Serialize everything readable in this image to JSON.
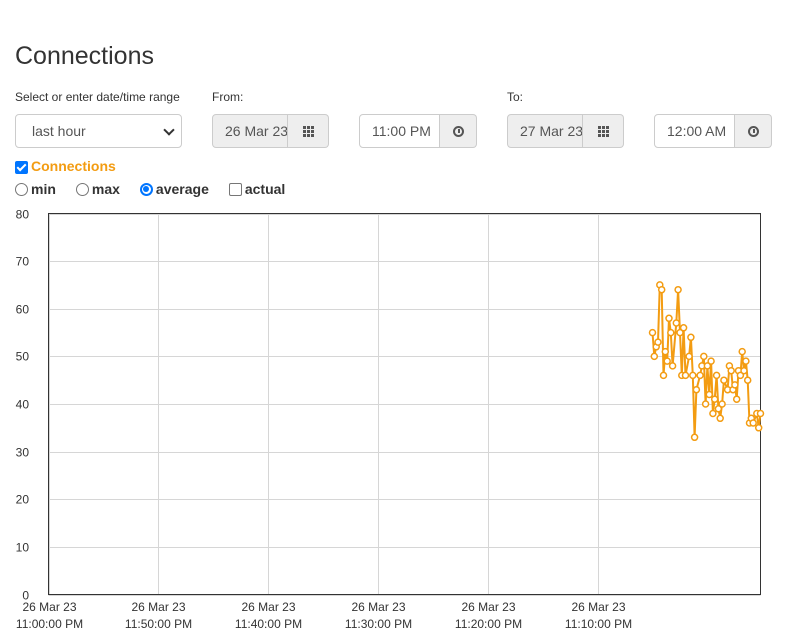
{
  "page": {
    "title": "Connections"
  },
  "range": {
    "label": "Select or enter date/time range",
    "selected": "last hour"
  },
  "from": {
    "label": "From:",
    "date": "26 Mar 23",
    "time": "11:00 PM",
    "date_icon": "calendar-grid-icon",
    "time_icon": "clock-icon"
  },
  "to": {
    "label": "To:",
    "date": "27 Mar 23",
    "time": "12:00 AM",
    "date_icon": "calendar-grid-icon",
    "time_icon": "clock-icon"
  },
  "metric": {
    "label": "Connections",
    "checked": true,
    "color": "#f39c12"
  },
  "modes": {
    "min": "min",
    "max": "max",
    "average": "average",
    "actual": "actual",
    "selected": "average"
  },
  "chart_data": {
    "type": "line",
    "title": "",
    "xlabel": "",
    "ylabel": "",
    "ylim": [
      0,
      80
    ],
    "yticks": [
      "0",
      "10",
      "20",
      "30",
      "40",
      "50",
      "60",
      "70",
      "80"
    ],
    "xticks": [
      {
        "date": "26 Mar 23",
        "time": "11:00:00 PM"
      },
      {
        "date": "26 Mar 23",
        "time": "11:10:00 PM"
      },
      {
        "date": "26 Mar 23",
        "time": "11:20:00 PM"
      },
      {
        "date": "26 Mar 23",
        "time": "11:30:00 PM"
      },
      {
        "date": "26 Mar 23",
        "time": "11:40:00 PM"
      },
      {
        "date": "26 Mar 23",
        "time": "11:50:00 PM"
      }
    ],
    "grid": true,
    "series": [
      {
        "color": "#f39c12",
        "points": [
          [
            "11:00 PM",
            55
          ],
          [
            "11:02 PM",
            50
          ],
          [
            "11:04 PM",
            52
          ],
          [
            "11:06 PM",
            53
          ],
          [
            "11:08 PM",
            65
          ],
          [
            "11:10 PM",
            64
          ],
          [
            "11:12 PM",
            46
          ],
          [
            "11:14 PM",
            51
          ],
          [
            "11:16 PM",
            49
          ],
          [
            "11:18 PM",
            58
          ],
          [
            "11:20 PM",
            55
          ],
          [
            "11:22 PM",
            48
          ],
          [
            "11:26 PM",
            57
          ],
          [
            "11:28 PM",
            64
          ],
          [
            "11:30 PM",
            55
          ],
          [
            "11:32 PM",
            46
          ],
          [
            "11:34 PM",
            56
          ],
          [
            "11:36 PM",
            46
          ],
          [
            "11:40 PM",
            50
          ],
          [
            "11:42 PM",
            54
          ],
          [
            "11:44 PM",
            46
          ],
          [
            "11:46 PM",
            33
          ],
          [
            "11:48 PM",
            43
          ],
          [
            "11:52 PM",
            46
          ],
          [
            "11:54 PM",
            48
          ],
          [
            "11:56 PM",
            50
          ],
          [
            "11:58 PM",
            40
          ],
          [
            "12:00 AM",
            48
          ],
          [
            "12:02 AM",
            42
          ],
          [
            "12:04 AM",
            49
          ],
          [
            "12:06 AM",
            38
          ],
          [
            "12:08 AM",
            41
          ],
          [
            "12:10 AM",
            46
          ],
          [
            "12:12 AM",
            39
          ],
          [
            "12:14 AM",
            37
          ],
          [
            "12:16 AM",
            40
          ],
          [
            "12:18 AM",
            45
          ],
          [
            "12:22 AM",
            43
          ],
          [
            "12:24 AM",
            48
          ],
          [
            "12:26 AM",
            47
          ],
          [
            "12:28 AM",
            43
          ],
          [
            "12:30 AM",
            44
          ],
          [
            "12:32 AM",
            41
          ],
          [
            "12:34 AM",
            47
          ],
          [
            "12:36 AM",
            46
          ],
          [
            "12:38 AM",
            51
          ],
          [
            "12:40 AM",
            47
          ],
          [
            "12:42 AM",
            49
          ],
          [
            "12:44 AM",
            45
          ],
          [
            "12:46 AM",
            36
          ],
          [
            "12:48 AM",
            37
          ],
          [
            "12:50 AM",
            36
          ],
          [
            "12:54 AM",
            38
          ],
          [
            "12:56 AM",
            35
          ],
          [
            "12:58 AM",
            38
          ]
        ]
      }
    ]
  }
}
